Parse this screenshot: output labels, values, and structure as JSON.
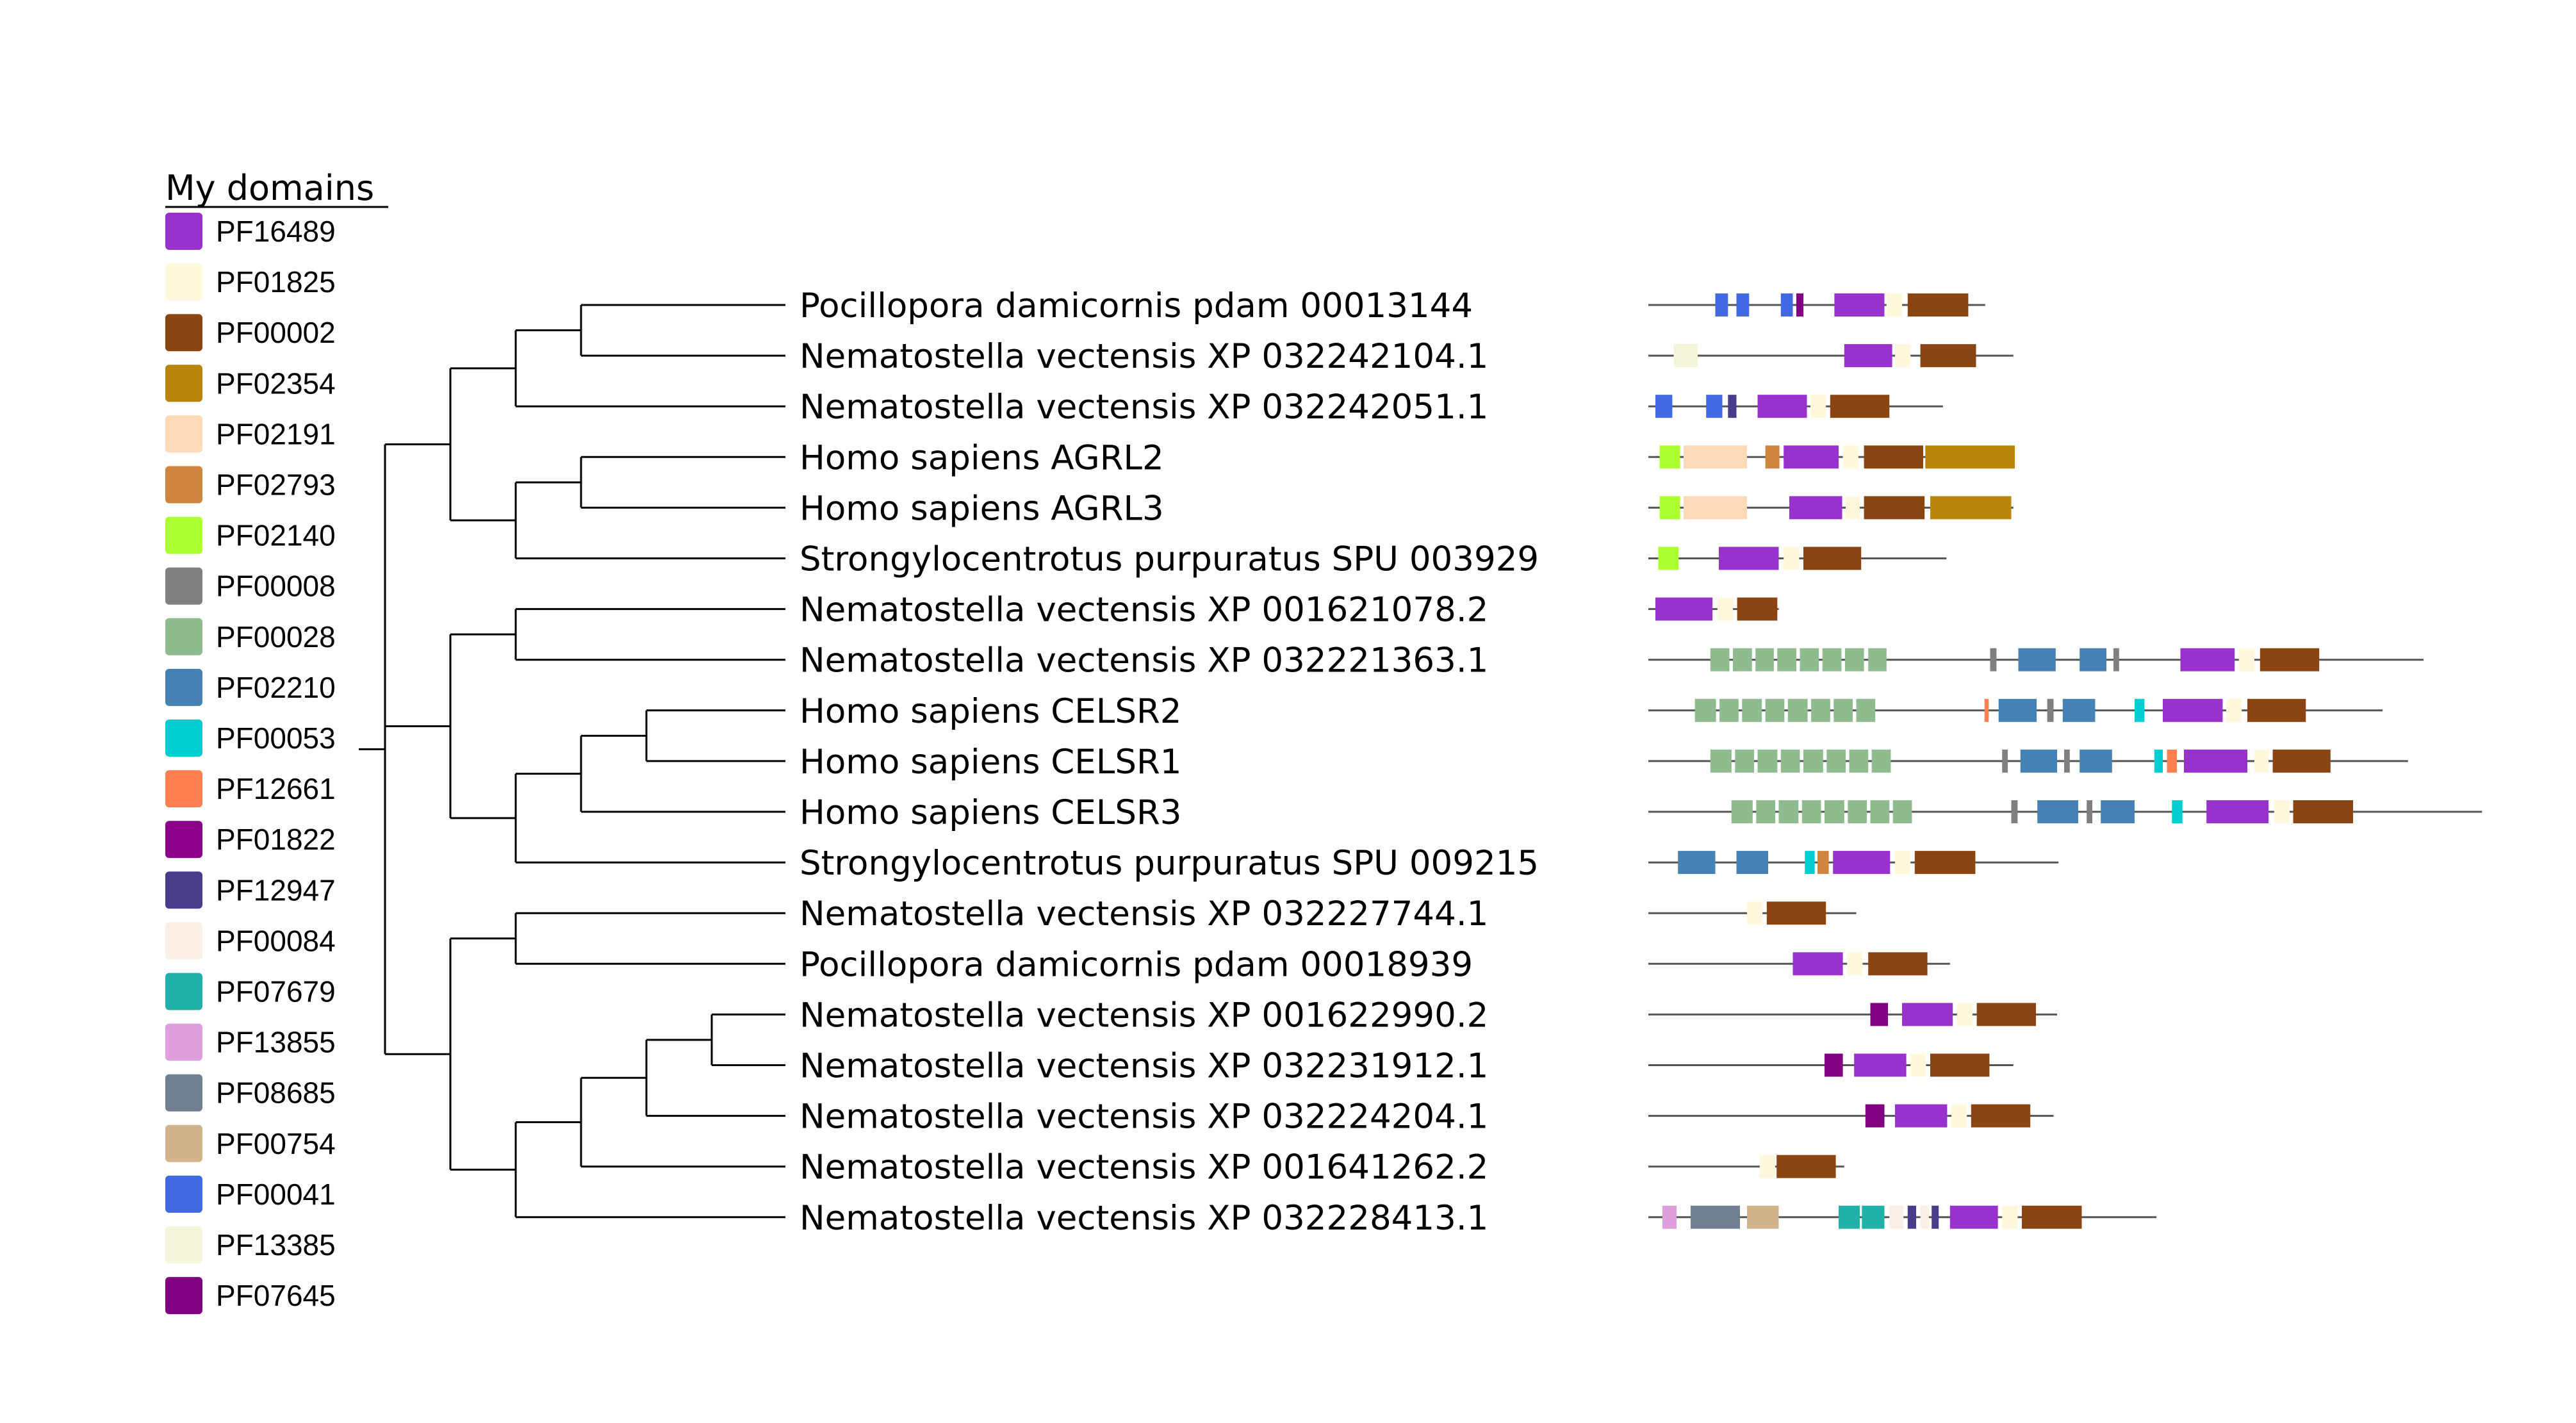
{
  "legend": {
    "title": "My domains",
    "items": [
      {
        "id": "PF16489",
        "color": "#9932CC"
      },
      {
        "id": "PF01825",
        "color": "#FFF8DC"
      },
      {
        "id": "PF00002",
        "color": "#8B4513"
      },
      {
        "id": "PF02354",
        "color": "#B8860B"
      },
      {
        "id": "PF02191",
        "color": "#FFDAB9"
      },
      {
        "id": "PF02793",
        "color": "#CD853F"
      },
      {
        "id": "PF02140",
        "color": "#ADFF2F"
      },
      {
        "id": "PF00008",
        "color": "#808080"
      },
      {
        "id": "PF00028",
        "color": "#8FBC8F"
      },
      {
        "id": "PF02210",
        "color": "#4682B4"
      },
      {
        "id": "PF00053",
        "color": "#00CED1"
      },
      {
        "id": "PF12661",
        "color": "#FF7F50"
      },
      {
        "id": "PF01822",
        "color": "#8B008B"
      },
      {
        "id": "PF12947",
        "color": "#483D8B"
      },
      {
        "id": "PF00084",
        "color": "#FAF0E6"
      },
      {
        "id": "PF07679",
        "color": "#20B2AA"
      },
      {
        "id": "PF13855",
        "color": "#DDA0DD"
      },
      {
        "id": "PF08685",
        "color": "#708090"
      },
      {
        "id": "PF00754",
        "color": "#D2B48C"
      },
      {
        "id": "PF00041",
        "color": "#4169E1"
      },
      {
        "id": "PF13385",
        "color": "#F5F5DC"
      },
      {
        "id": "PF07645",
        "color": "#800080"
      }
    ]
  },
  "leaves": [
    {
      "label": "Pocillopora damicornis pdam 00013144",
      "length": 478,
      "domains": [
        [
          "PF00041",
          95,
          113
        ],
        [
          "PF00041",
          125,
          143
        ],
        [
          "PF00041",
          188,
          205
        ],
        [
          "PF07645",
          210,
          220
        ],
        [
          "PF16489",
          264,
          335
        ],
        [
          "PF01825",
          338,
          360
        ],
        [
          "PF00002",
          368,
          454
        ]
      ]
    },
    {
      "label": "Nematostella vectensis XP 032242104.1",
      "length": 518,
      "domains": [
        [
          "PF13385",
          36,
          70
        ],
        [
          "PF16489",
          278,
          346
        ],
        [
          "PF01825",
          350,
          372
        ],
        [
          "PF00002",
          386,
          465
        ]
      ]
    },
    {
      "label": "Nematostella vectensis XP 032242051.1",
      "length": 418,
      "domains": [
        [
          "PF00041",
          10,
          34
        ],
        [
          "PF00041",
          82,
          105
        ],
        [
          "PF12947",
          113,
          125
        ],
        [
          "PF16489",
          155,
          225
        ],
        [
          "PF01825",
          230,
          252
        ],
        [
          "PF00002",
          258,
          342
        ]
      ]
    },
    {
      "label": "Homo sapiens AGRL2",
      "length": 520,
      "domains": [
        [
          "PF02140",
          16,
          45
        ],
        [
          "PF02191",
          50,
          140
        ],
        [
          "PF02793",
          166,
          186
        ],
        [
          "PF16489",
          192,
          270
        ],
        [
          "PF01825",
          276,
          298
        ],
        [
          "PF00002",
          306,
          390
        ],
        [
          "PF02354",
          393,
          520
        ]
      ]
    },
    {
      "label": "Homo sapiens AGRL3",
      "length": 518,
      "domains": [
        [
          "PF02140",
          16,
          45
        ],
        [
          "PF02191",
          50,
          140
        ],
        [
          "PF16489",
          200,
          275
        ],
        [
          "PF01825",
          280,
          300
        ],
        [
          "PF00002",
          306,
          392
        ],
        [
          "PF02354",
          400,
          515
        ]
      ]
    },
    {
      "label": "Strongylocentrotus purpuratus SPU 003929",
      "length": 423,
      "domains": [
        [
          "PF02140",
          14,
          43
        ],
        [
          "PF16489",
          100,
          185
        ],
        [
          "PF01825",
          192,
          214
        ],
        [
          "PF00002",
          220,
          302
        ]
      ]
    },
    {
      "label": "Nematostella vectensis XP 001621078.2",
      "length": 185,
      "domains": [
        [
          "PF16489",
          10,
          91
        ],
        [
          "PF01825",
          98,
          120
        ],
        [
          "PF00002",
          126,
          183
        ]
      ]
    },
    {
      "label": "Nematostella vectensis XP 032221363.1",
      "length": 1100,
      "domains": [
        [
          "PF00028",
          88,
          115
        ],
        [
          "PF00028",
          120,
          147
        ],
        [
          "PF00028",
          152,
          178
        ],
        [
          "PF00028",
          183,
          210
        ],
        [
          "PF00028",
          215,
          242
        ],
        [
          "PF00028",
          247,
          274
        ],
        [
          "PF00028",
          279,
          306
        ],
        [
          "PF00028",
          312,
          338
        ],
        [
          "PF00008",
          485,
          494
        ],
        [
          "PF02210",
          525,
          578
        ],
        [
          "PF02210",
          612,
          650
        ],
        [
          "PF00008",
          660,
          668
        ],
        [
          "PF16489",
          755,
          832
        ],
        [
          "PF01825",
          838,
          860
        ],
        [
          "PF00002",
          868,
          952
        ]
      ]
    },
    {
      "label": "Homo sapiens CELSR2",
      "length": 1042,
      "domains": [
        [
          "PF00028",
          66,
          96
        ],
        [
          "PF00028",
          101,
          128
        ],
        [
          "PF00028",
          133,
          161
        ],
        [
          "PF00028",
          166,
          193
        ],
        [
          "PF00028",
          198,
          226
        ],
        [
          "PF00028",
          231,
          258
        ],
        [
          "PF00028",
          263,
          290
        ],
        [
          "PF00028",
          295,
          322
        ],
        [
          "PF12661",
          477,
          483
        ],
        [
          "PF02210",
          497,
          551
        ],
        [
          "PF00008",
          566,
          575
        ],
        [
          "PF02210",
          588,
          634
        ],
        [
          "PF00053",
          690,
          704
        ],
        [
          "PF16489",
          730,
          815
        ],
        [
          "PF01825",
          820,
          842
        ],
        [
          "PF00002",
          850,
          933
        ]
      ]
    },
    {
      "label": "Homo sapiens CELSR1",
      "length": 1078,
      "domains": [
        [
          "PF00028",
          88,
          118
        ],
        [
          "PF00028",
          123,
          150
        ],
        [
          "PF00028",
          155,
          183
        ],
        [
          "PF00028",
          188,
          215
        ],
        [
          "PF00028",
          220,
          248
        ],
        [
          "PF00028",
          253,
          280
        ],
        [
          "PF00028",
          285,
          312
        ],
        [
          "PF00028",
          317,
          344
        ],
        [
          "PF00008",
          502,
          510
        ],
        [
          "PF02210",
          528,
          580
        ],
        [
          "PF00008",
          590,
          598
        ],
        [
          "PF02210",
          612,
          658
        ],
        [
          "PF00053",
          718,
          730
        ],
        [
          "PF12661",
          736,
          750
        ],
        [
          "PF16489",
          760,
          850
        ],
        [
          "PF01825",
          860,
          880
        ],
        [
          "PF00002",
          886,
          968
        ]
      ]
    },
    {
      "label": "Homo sapiens CELSR3",
      "length": 1183,
      "domains": [
        [
          "PF00028",
          118,
          148
        ],
        [
          "PF00028",
          153,
          180
        ],
        [
          "PF00028",
          185,
          213
        ],
        [
          "PF00028",
          218,
          245
        ],
        [
          "PF00028",
          250,
          278
        ],
        [
          "PF00028",
          283,
          310
        ],
        [
          "PF00028",
          315,
          342
        ],
        [
          "PF00028",
          347,
          374
        ],
        [
          "PF00008",
          515,
          524
        ],
        [
          "PF02210",
          552,
          610
        ],
        [
          "PF00008",
          622,
          630
        ],
        [
          "PF02210",
          642,
          690
        ],
        [
          "PF00053",
          743,
          758
        ],
        [
          "PF16489",
          792,
          880
        ],
        [
          "PF01825",
          888,
          910
        ],
        [
          "PF00002",
          915,
          1000
        ]
      ]
    },
    {
      "label": "Strongylocentrotus purpuratus SPU 009215",
      "length": 582,
      "domains": [
        [
          "PF02210",
          42,
          95
        ],
        [
          "PF02210",
          125,
          170
        ],
        [
          "PF00053",
          222,
          236
        ],
        [
          "PF02793",
          240,
          256
        ],
        [
          "PF16489",
          262,
          343
        ],
        [
          "PF01825",
          350,
          372
        ],
        [
          "PF00002",
          378,
          464
        ]
      ]
    },
    {
      "label": "Nematostella vectensis XP 032227744.1",
      "length": 295,
      "domains": [
        [
          "PF01825",
          140,
          162
        ],
        [
          "PF00002",
          168,
          252
        ]
      ]
    },
    {
      "label": "Pocillopora damicornis pdam 00018939",
      "length": 428,
      "domains": [
        [
          "PF16489",
          205,
          276
        ],
        [
          "PF01825",
          282,
          304
        ],
        [
          "PF00002",
          312,
          396
        ]
      ]
    },
    {
      "label": "Nematostella vectensis XP 001622990.2",
      "length": 580,
      "domains": [
        [
          "PF07645",
          315,
          340
        ],
        [
          "PF16489",
          360,
          432
        ],
        [
          "PF01825",
          438,
          460
        ],
        [
          "PF00002",
          466,
          550
        ]
      ]
    },
    {
      "label": "Nematostella vectensis XP 032231912.1",
      "length": 518,
      "domains": [
        [
          "PF07645",
          250,
          276
        ],
        [
          "PF16489",
          292,
          366
        ],
        [
          "PF01825",
          372,
          394
        ],
        [
          "PF00002",
          400,
          484
        ]
      ]
    },
    {
      "label": "Nematostella vectensis XP 032224204.1",
      "length": 575,
      "domains": [
        [
          "PF07645",
          308,
          335
        ],
        [
          "PF16489",
          350,
          424
        ],
        [
          "PF01825",
          430,
          452
        ],
        [
          "PF00002",
          458,
          542
        ]
      ]
    },
    {
      "label": "Nematostella vectensis XP 001641262.2",
      "length": 278,
      "domains": [
        [
          "PF01825",
          158,
          180
        ],
        [
          "PF00002",
          182,
          266
        ]
      ]
    },
    {
      "label": "Nematostella vectensis XP 032228413.1",
      "length": 721,
      "domains": [
        [
          "PF13855",
          20,
          40
        ],
        [
          "PF08685",
          60,
          130
        ],
        [
          "PF00754",
          140,
          185
        ],
        [
          "PF07679",
          270,
          300
        ],
        [
          "PF07679",
          303,
          335
        ],
        [
          "PF00084",
          342,
          362
        ],
        [
          "PF12947",
          368,
          380
        ],
        [
          "PF00084",
          386,
          398
        ],
        [
          "PF12947",
          402,
          412
        ],
        [
          "PF16489",
          428,
          496
        ],
        [
          "PF01825",
          502,
          524
        ],
        [
          "PF00002",
          530,
          615
        ]
      ]
    }
  ]
}
